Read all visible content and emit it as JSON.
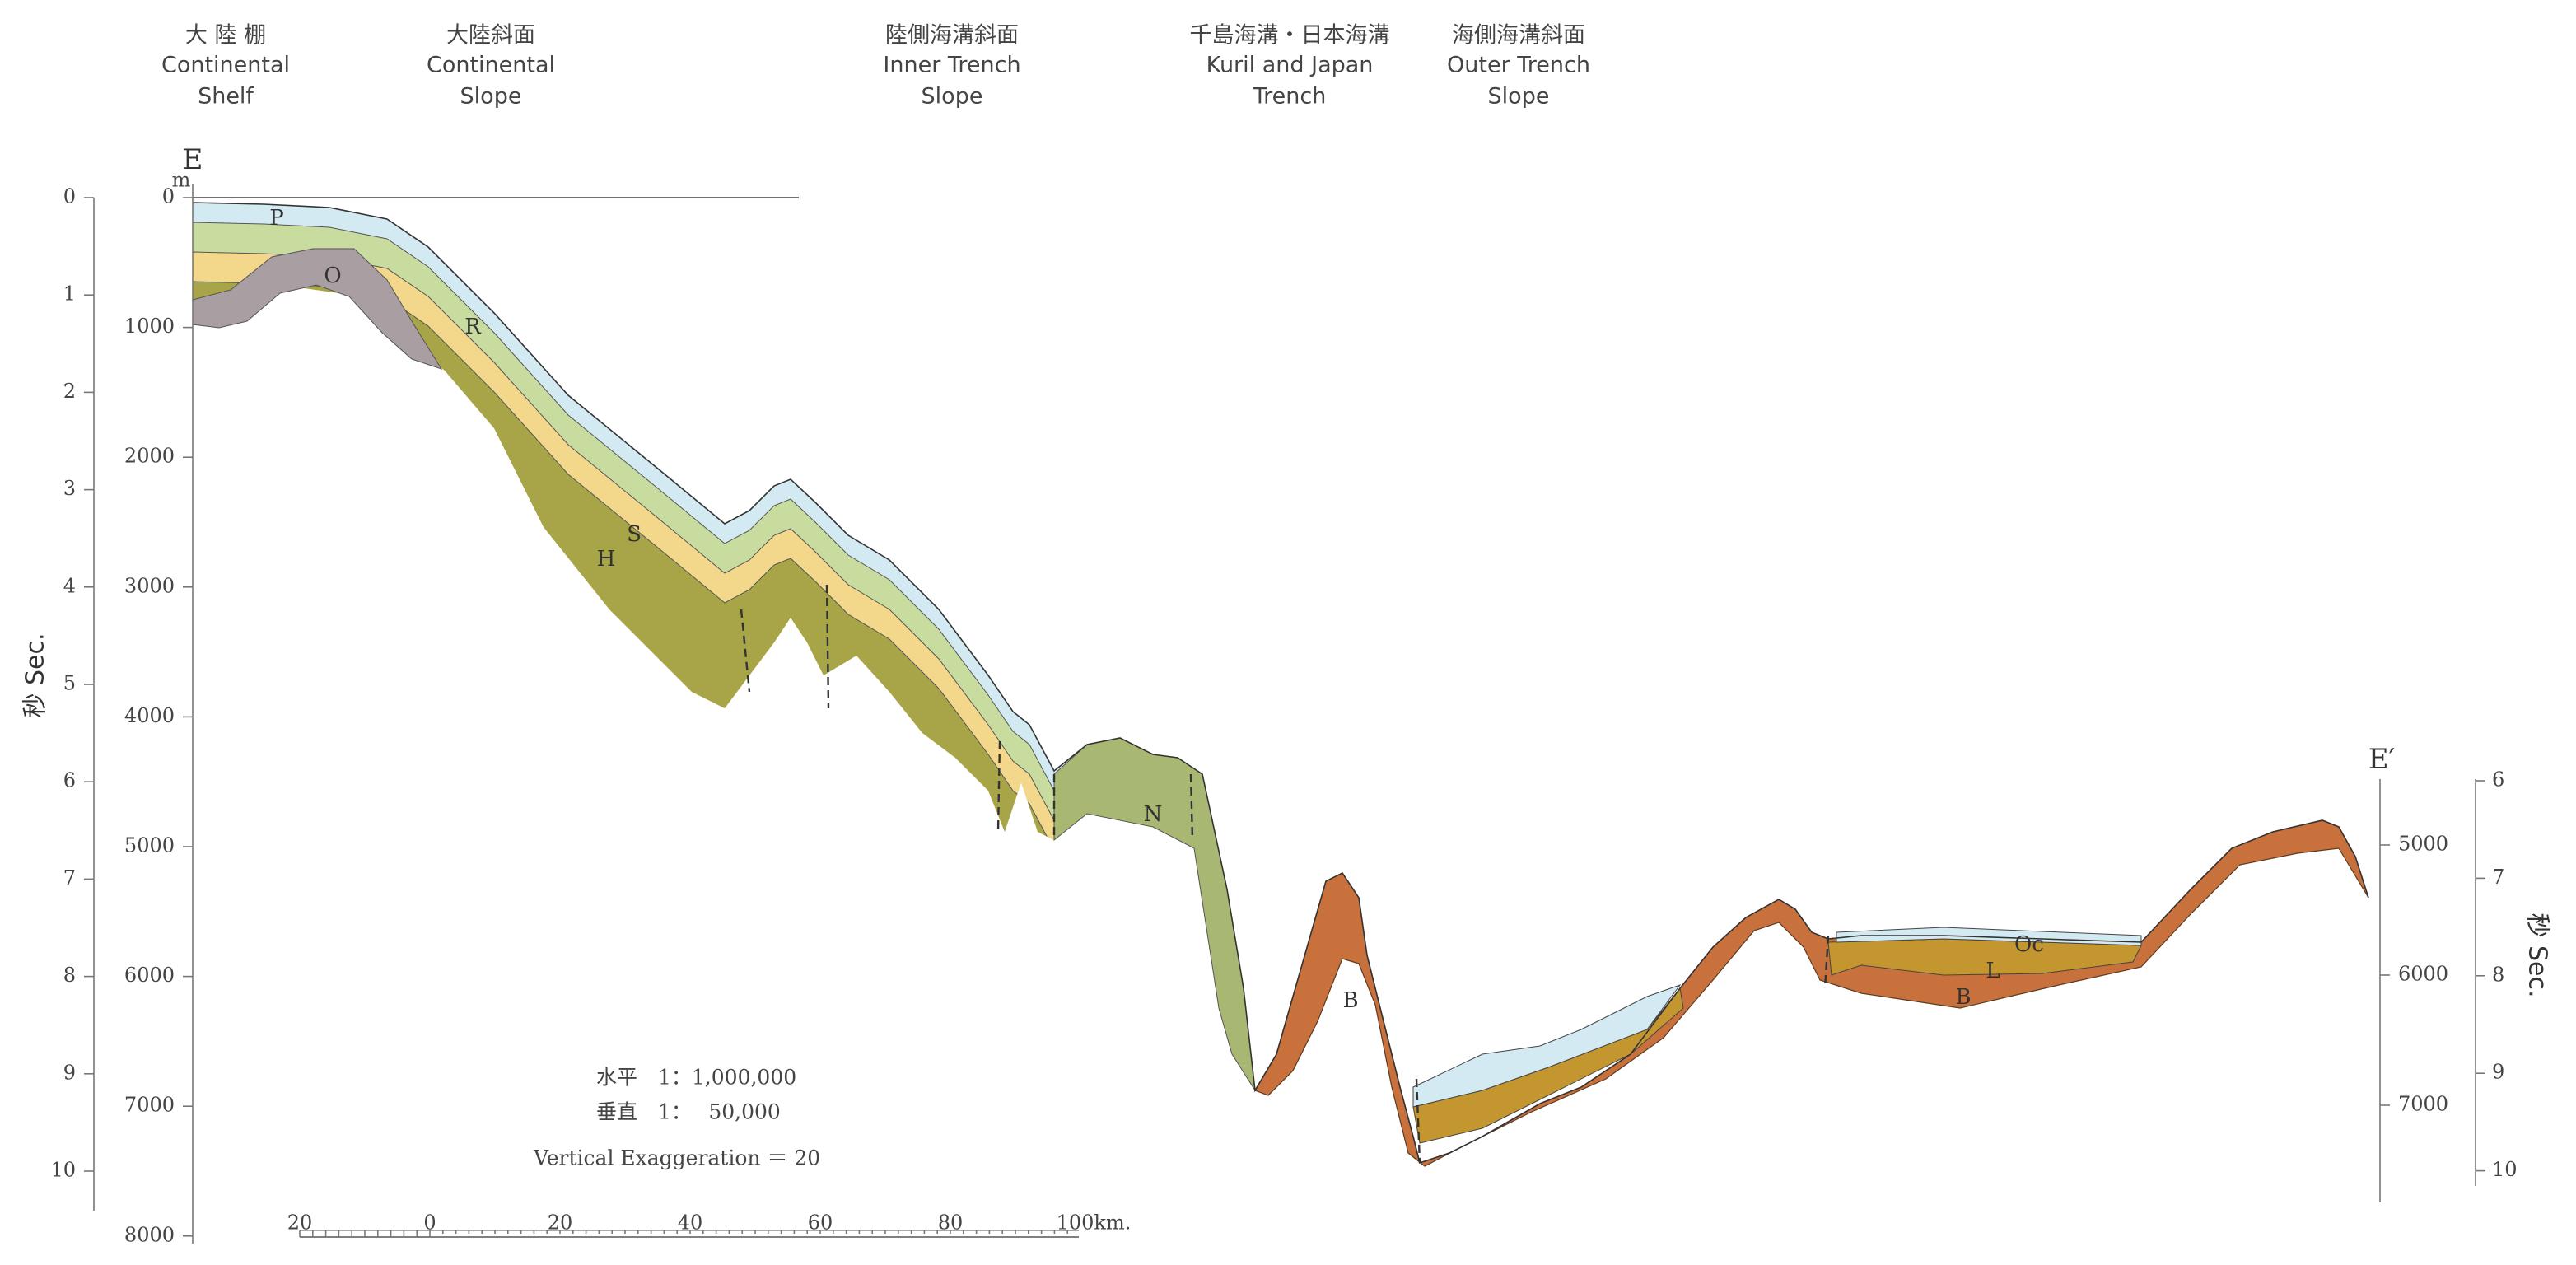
{
  "headers": [
    {
      "lines": [
        "大 陸 棚",
        "Continental",
        "Shelf"
      ]
    },
    {
      "lines": [
        "大陸斜面",
        "Continental",
        "Slope"
      ]
    },
    {
      "lines": [
        "陸側海溝斜面",
        "Inner Trench",
        "Slope"
      ]
    },
    {
      "lines": [
        "千島海溝・日本海溝",
        "Kuril and Japan",
        "Trench"
      ]
    },
    {
      "lines": [
        "海側海溝斜面",
        "Outer Trench",
        "Slope"
      ]
    }
  ],
  "left_axis": {
    "title": "秒 Sec.",
    "unit": "m",
    "seconds": [
      "0",
      "1",
      "2",
      "3",
      "4",
      "5",
      "6",
      "7",
      "8",
      "9",
      "10"
    ],
    "meters": [
      "0",
      "1000",
      "2000",
      "3000",
      "4000",
      "5000",
      "6000",
      "7000",
      "8000"
    ]
  },
  "right_axis": {
    "title": "秒 Sec.",
    "meters": [
      "5000",
      "6000",
      "7000"
    ],
    "seconds": [
      "6",
      "7",
      "8",
      "9",
      "10"
    ]
  },
  "profile_ends": {
    "left": "E",
    "right": "E′"
  },
  "layers": [
    "P",
    "O",
    "R",
    "S",
    "H",
    "N",
    "B",
    "Oc",
    "L",
    "B"
  ],
  "scale": {
    "horizontal": "水平　1：1,000,000",
    "vertical": "垂直　1：　 50,000",
    "exaggeration": "Vertical Exaggeration ＝ 20",
    "bar_labels": [
      "20",
      "0",
      "20",
      "40",
      "60",
      "80",
      "100km."
    ]
  }
}
